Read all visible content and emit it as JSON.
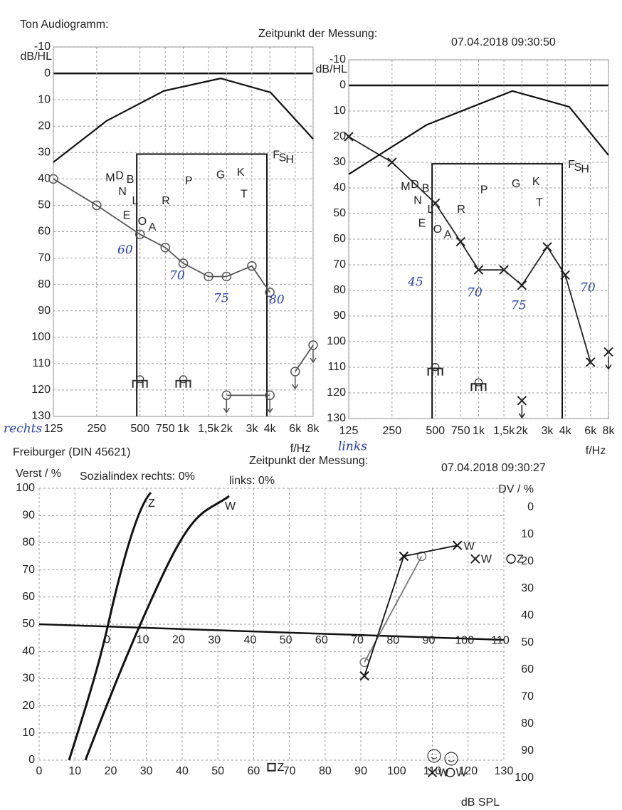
{
  "header": {
    "title": "Ton Audiogramm:",
    "time_label": "Zeitpunkt der Messung:",
    "time": "07.04.2018 09:30:50"
  },
  "chart_data": [
    {
      "type": "audiogram",
      "side_label": "rechts",
      "y_label": "dB/HL",
      "x_label": "f/Hz",
      "log_x": true,
      "grid": true,
      "xlim": [
        125,
        8000
      ],
      "xticks": [
        125,
        250,
        500,
        750,
        {
          "value": 1000,
          "label": "1k"
        },
        {
          "value": 1500,
          "label": "1,5k"
        },
        {
          "value": 2000,
          "label": "2k"
        },
        {
          "value": 3000,
          "label": "3k"
        },
        {
          "value": 4000,
          "label": "4k"
        },
        {
          "value": 6000,
          "label": "6k"
        },
        {
          "value": 8000,
          "label": "8k"
        }
      ],
      "ylim": [
        -10,
        130
      ],
      "yticks": [
        -10,
        0,
        10,
        20,
        30,
        40,
        50,
        60,
        70,
        80,
        90,
        100,
        110,
        120,
        130
      ],
      "series": [
        {
          "marker": "circle",
          "color": "#555555",
          "x": [
            125,
            250,
            500,
            750,
            1000,
            1500,
            2000,
            3000,
            4000
          ],
          "values": [
            40,
            50,
            61,
            66,
            72,
            77,
            77,
            73,
            83
          ]
        },
        {
          "marker": "circle-arrow",
          "color": "#555555",
          "x": [
            6000,
            8000
          ],
          "values": [
            113,
            103
          ]
        },
        {
          "marker": "bracket",
          "color": "#333333",
          "x": [
            500,
            1000
          ],
          "values": [
            117,
            117
          ]
        },
        {
          "marker": "circle-arrow",
          "color": "#555555",
          "x": [
            2000,
            4000
          ],
          "values": [
            122,
            122
          ]
        }
      ],
      "speech_letters": [
        "M",
        "D",
        "B",
        "N",
        "L",
        "E",
        "O",
        "A",
        "R",
        "P",
        "G",
        "K",
        "T",
        "F",
        "S",
        "H"
      ],
      "annotations": [
        "60",
        "70",
        "75",
        "80"
      ]
    },
    {
      "type": "audiogram",
      "side_label": "links",
      "y_label": "dB/HL",
      "x_label": "f/Hz",
      "log_x": true,
      "grid": true,
      "xlim": [
        125,
        8000
      ],
      "xticks": [
        125,
        250,
        500,
        750,
        {
          "value": 1000,
          "label": "1k"
        },
        {
          "value": 1500,
          "label": "1,5k"
        },
        {
          "value": 2000,
          "label": "2k"
        },
        {
          "value": 3000,
          "label": "3k"
        },
        {
          "value": 4000,
          "label": "4k"
        },
        {
          "value": 6000,
          "label": "6k"
        },
        {
          "value": 8000,
          "label": "8k"
        }
      ],
      "ylim": [
        -10,
        130
      ],
      "yticks": [
        -10,
        0,
        10,
        20,
        30,
        40,
        50,
        60,
        70,
        80,
        90,
        100,
        110,
        120,
        130
      ],
      "series": [
        {
          "marker": "x",
          "color": "#222222",
          "x": [
            125,
            250,
            500,
            750,
            1000,
            1500,
            2000,
            3000,
            4000,
            6000
          ],
          "values": [
            20,
            30,
            46,
            61,
            72,
            72,
            78,
            63,
            74,
            108
          ]
        },
        {
          "marker": "x-arrow",
          "color": "#222222",
          "x": [
            8000
          ],
          "values": [
            104
          ]
        },
        {
          "marker": "bracket",
          "color": "#222222",
          "x": [
            500,
            1000
          ],
          "values": [
            111,
            117
          ]
        },
        {
          "marker": "x-arrow",
          "color": "#222222",
          "x": [
            2000
          ],
          "values": [
            123
          ]
        }
      ],
      "speech_letters": [
        "M",
        "D",
        "B",
        "N",
        "L",
        "E",
        "O",
        "A",
        "R",
        "P",
        "G",
        "K",
        "T",
        "F",
        "S",
        "H"
      ],
      "annotations": [
        "45",
        "70",
        "75",
        "70"
      ]
    },
    {
      "type": "speech",
      "title": "Freiburger (DIN 45621)",
      "time_label": "Zeitpunkt der Messung:",
      "time": "07.04.2018 09:30:27",
      "y_label": "Verst / %",
      "social_right": "Sozialindex rechts: 0%",
      "social_left": "links: 0%",
      "y2_label": "DV / %",
      "x_label": "dB SPL",
      "xlim": [
        0,
        130
      ],
      "xticks": [
        0,
        10,
        20,
        30,
        40,
        50,
        60,
        70,
        80,
        90,
        100,
        110,
        120,
        130
      ],
      "x2lim": [
        -19,
        111
      ],
      "x2ticks": [
        0,
        10,
        20,
        30,
        40,
        50,
        60,
        70,
        80,
        90,
        100,
        110
      ],
      "ylim": [
        0,
        100
      ],
      "yticks": [
        0,
        10,
        20,
        30,
        40,
        50,
        60,
        70,
        80,
        90,
        100
      ],
      "y2lim": [
        0,
        100
      ],
      "y2ticks": [
        0,
        10,
        20,
        30,
        40,
        50,
        60,
        70,
        80,
        90,
        100
      ],
      "curve_labels": [
        "Z",
        "W"
      ],
      "series": [
        {
          "marker": "circle",
          "color": "#777777",
          "x": [
            91,
            107
          ],
          "values": [
            36,
            75
          ]
        },
        {
          "marker": "x",
          "color": "#111111",
          "x": [
            91,
            102,
            117
          ],
          "values": [
            31,
            75,
            79
          ],
          "end_label": "W"
        }
      ],
      "dv_points": {
        "marker": [
          "x",
          "circle"
        ],
        "x": [
          122,
          132
        ],
        "values": [
          19,
          19
        ],
        "labels": [
          "W",
          "Z"
        ]
      },
      "bottom_points": {
        "marker": [
          "box",
          "x",
          "circle"
        ],
        "x": [
          65,
          110,
          115
        ],
        "values": [
          96,
          98,
          98
        ],
        "labels": [
          "Z",
          "W",
          "W"
        ]
      }
    }
  ]
}
